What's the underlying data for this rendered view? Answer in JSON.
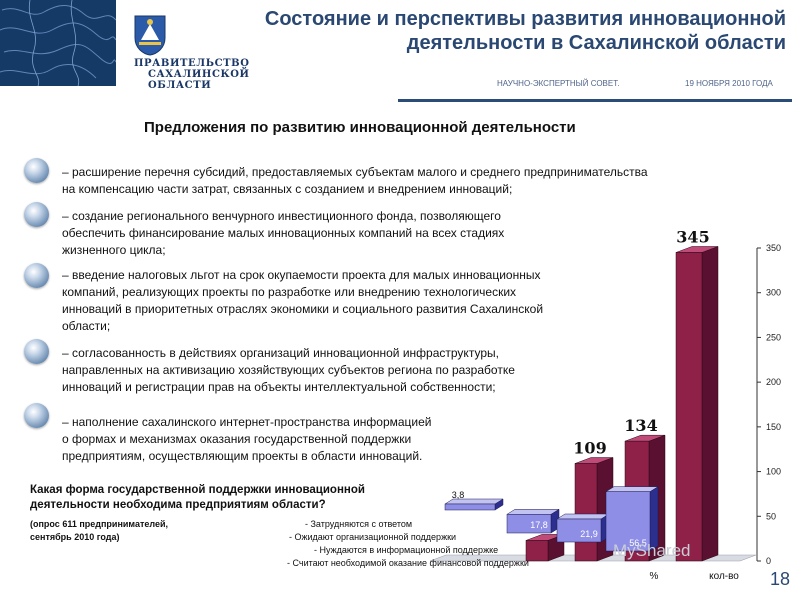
{
  "header": {
    "title_line1": "Состояние и перспективы развития инновационной",
    "title_line2": "деятельности в Сахалинской области",
    "org_line1": "ПРАВИТЕЛЬСТВО",
    "org_line2": "САХАЛИНСКОЙ",
    "org_line3": "ОБЛАСТИ",
    "event": "НАУЧНО-ЭКСПЕРТНЫЙ СОВЕТ.",
    "date": "19 НОЯБРЯ 2010 ГОДА"
  },
  "subtitle": "Предложения по развитию инновационной деятельности",
  "proposals": [
    {
      "l1": "– расширение перечня субсидий, предоставляемых субъектам малого и среднего предпринимательства",
      "l2": "на компенсацию части затрат, связанных с созданием и внедрением  инноваций;",
      "l3": "",
      "l4": ""
    },
    {
      "l1": "– создание регионального  венчурного инвестиционного фонда, позволяющего",
      "l2": "обеспечить финансирование малых инновационных компаний на всех стадиях",
      "l3": "жизненного цикла;",
      "l4": ""
    },
    {
      "l1": "– введение налоговых льгот на срок окупаемости проекта для малых инновационных",
      "l2": "компаний,  реализующих проекты по разработке  или внедрению технологических",
      "l3": "инноваций в приоритетных  отраслях экономики и социального развития Сахалинской",
      "l4": "области;"
    },
    {
      "l1": "– согласованность  в действиях организаций  инновационной инфраструктуры,",
      "l2": "направленных  на активизацию хозяйствующих субъектов региона по разработке",
      "l3": "инноваций и регистрации прав на объекты  интеллектуальной собственности;",
      "l4": ""
    },
    {
      "l1": "– наполнение  сахалинского интернет-пространства  информацией",
      "l2": "о формах и механизмах оказания государственной поддержки",
      "l3": "предприятиям, осуществляющим проекты в области инноваций.",
      "l4": ""
    }
  ],
  "survey": {
    "question_l1": "Какая форма государственной поддержки инновационной",
    "question_l2": "деятельности необходима предприятиям области?",
    "note_l1": "(опрос 611 предпринимателей,",
    "note_l2": "сентябрь 2010 года)"
  },
  "chart_data": {
    "type": "bar",
    "categories": [
      "Затрудняются с ответом",
      "Ожидают организационной поддержки",
      "Нуждаются в информационной поддержке",
      "Считают необходимой оказание финансовой поддержки"
    ],
    "legend_labels": [
      "- Затрудняются с ответом",
      "- Ожидают организационной поддержки",
      "- Нуждаются в информационной поддержке",
      "- Считают необходимой оказание финансовой поддержки"
    ],
    "series": [
      {
        "name": "%",
        "values": [
          3.8,
          17.8,
          21.9,
          56.5
        ],
        "labels": [
          "3,8",
          "17,8",
          "21,9",
          "56,5"
        ],
        "color": "#8e8ee6"
      },
      {
        "name": "кол-во",
        "values": [
          23,
          109,
          134,
          345
        ],
        "labels": [
          "23",
          "109",
          "134",
          "345"
        ],
        "color": "#8f2048"
      }
    ],
    "ylim": [
      0,
      350
    ],
    "yticks": [
      "0",
      "50",
      "100",
      "150",
      "200",
      "250",
      "300",
      "350"
    ],
    "xlabels": [
      "%",
      "кол-во"
    ]
  },
  "page_number": "18",
  "watermark": "MyShared"
}
